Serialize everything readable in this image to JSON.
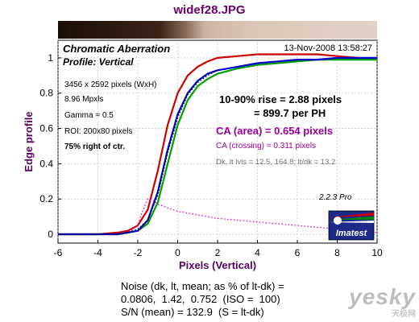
{
  "file_title": "widef28.JPG",
  "footer_lines": [
    "Noise (dk, lt, mean; as % of lt-dk) =",
    "0.0806,  1.42,  0.752  (ISO =  100)",
    "S/N (mean) = 132.9  (S = lt-dk)"
  ],
  "watermark": {
    "brand": "yesky",
    "sub": "天极网"
  },
  "logo": {
    "text": "Imatest"
  },
  "colors": {
    "red": "#cc0000",
    "green": "#00a000",
    "blue": "#0000cc",
    "magenta": "#dd00dd",
    "purple_text": "#990099",
    "title": "#6a006a",
    "axis_label": "#5a0060",
    "grid": "#b8b8b8"
  },
  "chart_data": {
    "type": "line",
    "title": "Chromatic Aberration",
    "subtitle": "Profile: Vertical",
    "timestamp": "13-Nov-2008 13:58:27",
    "xlabel": "Pixels (Vertical)",
    "ylabel": "Edge profile",
    "xlim": [
      -6,
      10
    ],
    "ylim": [
      -0.05,
      1.1
    ],
    "xticks": [
      -6,
      -4,
      -2,
      0,
      2,
      4,
      6,
      8,
      10
    ],
    "yticks": [
      0,
      0.2,
      0.4,
      0.6,
      0.8,
      1
    ],
    "ytick_labels": [
      "0",
      "0.2",
      "0.4",
      "0.6",
      "0.8",
      "1"
    ],
    "grid": true,
    "info_lines": [
      "3456 x 2592 pixels (WxH)",
      "8.96 Mpxls",
      "Gamma = 0.5",
      "ROI: 200x80 pixels",
      "75% right of ctr."
    ],
    "rise_line1": "10-90% rise = 2.88 pixels",
    "rise_line2": "= 899.7 per PH",
    "ca_area": "CA (area) = 0.654 pixels",
    "ca_crossing": "CA (crossing) = 0.311 pixels",
    "levels": "Dk, lt lvls = 12.5, 164.8;  lt/dk = 13.2",
    "version": "2.2.3  Pro",
    "series": [
      {
        "color": "red",
        "x": [
          -6,
          -4,
          -3,
          -2.5,
          -2,
          -1.5,
          -1,
          -0.5,
          0,
          0.5,
          1,
          1.5,
          2,
          3,
          4,
          5,
          6,
          7,
          8,
          9,
          10
        ],
        "y": [
          0,
          0,
          0.01,
          0.02,
          0.05,
          0.14,
          0.36,
          0.62,
          0.8,
          0.9,
          0.95,
          0.98,
          1.0,
          1.01,
          1.02,
          1.02,
          1.02,
          1.02,
          1.01,
          1.0,
          0.99
        ]
      },
      {
        "color": "green",
        "x": [
          -6,
          -4,
          -3,
          -2.5,
          -2,
          -1.5,
          -1,
          -0.5,
          0,
          0.5,
          1,
          1.5,
          2,
          3,
          4,
          5,
          6,
          7,
          8,
          9,
          10
        ],
        "y": [
          0,
          0,
          0,
          0.01,
          0.02,
          0.06,
          0.18,
          0.4,
          0.62,
          0.76,
          0.84,
          0.88,
          0.91,
          0.94,
          0.96,
          0.97,
          0.98,
          0.99,
          0.99,
          0.99,
          0.99
        ]
      },
      {
        "color": "blue",
        "x": [
          -6,
          -4,
          -3,
          -2.5,
          -2,
          -1.5,
          -1,
          -0.5,
          0,
          0.5,
          1,
          1.5,
          2,
          3,
          4,
          5,
          6,
          7,
          8,
          9,
          10
        ],
        "y": [
          0,
          0,
          0,
          0.01,
          0.02,
          0.08,
          0.24,
          0.48,
          0.68,
          0.8,
          0.87,
          0.91,
          0.93,
          0.95,
          0.97,
          0.98,
          0.99,
          0.99,
          1.0,
          1.0,
          1.0
        ]
      },
      {
        "color": "magenta",
        "dotted": true,
        "x": [
          -6,
          -3,
          -2.5,
          -2,
          -1.8,
          -1.5,
          -1.2,
          -1,
          -0.5,
          0,
          0.5,
          1,
          2,
          3,
          4,
          5,
          6,
          7,
          8,
          9,
          10
        ],
        "y": [
          0,
          0,
          0.01,
          0.05,
          0.12,
          0.2,
          0.19,
          0.17,
          0.15,
          0.13,
          0.12,
          0.11,
          0.09,
          0.08,
          0.07,
          0.06,
          0.05,
          0.04,
          0.03,
          0.02,
          0.01
        ]
      },
      {
        "color": "black",
        "dotted": true,
        "x": [
          -6,
          -4,
          -3,
          -2.5,
          -2,
          -1.5,
          -1,
          -0.5,
          0,
          0.5,
          1,
          1.5,
          2
        ],
        "y": [
          0,
          0,
          0,
          0.01,
          0.03,
          0.08,
          0.22,
          0.46,
          0.66,
          0.79,
          0.86,
          0.9,
          0.93
        ]
      }
    ]
  }
}
